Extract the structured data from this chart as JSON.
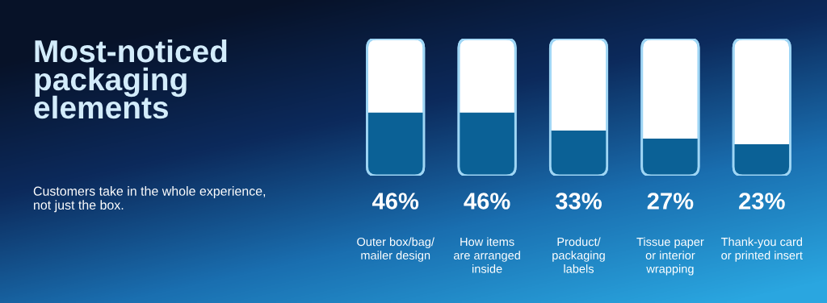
{
  "chart_data": {
    "type": "bar",
    "title": "Most-noticed\npackaging\nelements",
    "subtitle": "Customers take in the whole experience,\nnot just the box.",
    "categories": [
      "Outer box/bag/\nmailer design",
      "How items\nare arranged\ninside",
      "Product/\npackaging\nlabels",
      "Tissue paper\nor interior\nwrapping",
      "Thank-you card\nor printed insert"
    ],
    "values": [
      46,
      46,
      33,
      27,
      23
    ],
    "value_labels": [
      "46%",
      "46%",
      "33%",
      "27%",
      "23%"
    ],
    "color": "#0b6196",
    "ylim": [
      0,
      100
    ]
  }
}
